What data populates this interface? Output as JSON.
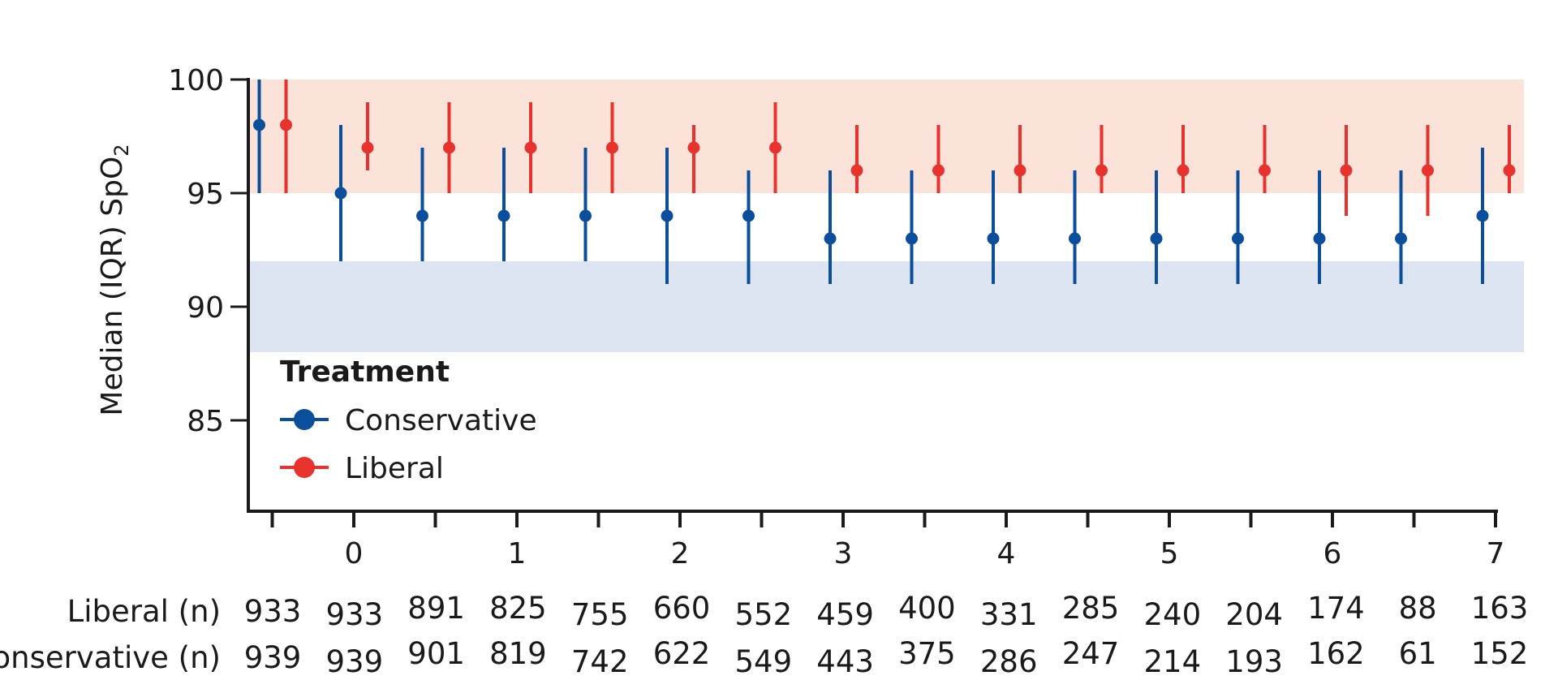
{
  "colors": {
    "conservative": "#0b4f9c",
    "liberal": "#e8322d",
    "liberal_band": "#fbe3da",
    "conservative_band": "#dde5f3",
    "axis": "#1a1a1a"
  },
  "chart_data": {
    "type": "scatter",
    "title": "",
    "ylabel": "Median (IQR) SpO",
    "ylabel_subscript": "2",
    "xlabel": "",
    "ylim": [
      81,
      100
    ],
    "y_ticks": [
      100,
      95,
      90,
      85
    ],
    "x_ticks": [
      0,
      1,
      2,
      3,
      4,
      5,
      6,
      7
    ],
    "x_tick_labels": [
      "0",
      "1",
      "2",
      "3",
      "4",
      "5",
      "6",
      "7"
    ],
    "target_bands": {
      "liberal": [
        95,
        100
      ],
      "conservative": [
        88,
        92
      ]
    },
    "legend": {
      "title": "Treatment",
      "position": "bottom-left",
      "entries": [
        "Conservative",
        "Liberal"
      ]
    },
    "series": [
      {
        "name": "Conservative",
        "x": [
          -0.5,
          0,
          0.5,
          1,
          1.5,
          2,
          2.5,
          3,
          3.5,
          4,
          4.5,
          5,
          5.5,
          6,
          6.5,
          7
        ],
        "median": [
          98,
          95,
          94,
          94,
          94,
          94,
          94,
          93,
          93,
          93,
          93,
          93,
          93,
          93,
          93,
          94
        ],
        "q1": [
          95,
          92,
          92,
          92,
          92,
          91,
          91,
          91,
          91,
          91,
          91,
          91,
          91,
          91,
          91,
          91
        ],
        "q3": [
          100,
          98,
          97,
          97,
          97,
          97,
          96,
          96,
          96,
          96,
          96,
          96,
          96,
          96,
          96,
          97
        ]
      },
      {
        "name": "Liberal",
        "x": [
          -0.5,
          0,
          0.5,
          1,
          1.5,
          2,
          2.5,
          3,
          3.5,
          4,
          4.5,
          5,
          5.5,
          6,
          6.5,
          7
        ],
        "median": [
          98,
          97,
          97,
          97,
          97,
          97,
          97,
          96,
          96,
          96,
          96,
          96,
          96,
          96,
          96,
          96
        ],
        "q1": [
          95,
          96,
          95,
          95,
          95,
          95,
          95,
          95,
          95,
          95,
          95,
          95,
          95,
          94,
          94,
          95
        ],
        "q3": [
          100,
          99,
          99,
          99,
          99,
          98,
          99,
          98,
          98,
          98,
          98,
          98,
          98,
          98,
          98,
          98
        ]
      }
    ],
    "counts": {
      "liberal_label": "Liberal (n)",
      "conservative_label": "onservative (n)",
      "liberal": [
        "933",
        "933",
        "891",
        "825",
        "755",
        "660",
        "552",
        "459",
        "400",
        "331",
        "285",
        "240",
        "204",
        "174",
        "88",
        "163"
      ],
      "conservative": [
        "939",
        "939",
        "901",
        "819",
        "742",
        "622",
        "549",
        "443",
        "375",
        "286",
        "247",
        "214",
        "193",
        "162",
        "61",
        "152"
      ]
    }
  }
}
